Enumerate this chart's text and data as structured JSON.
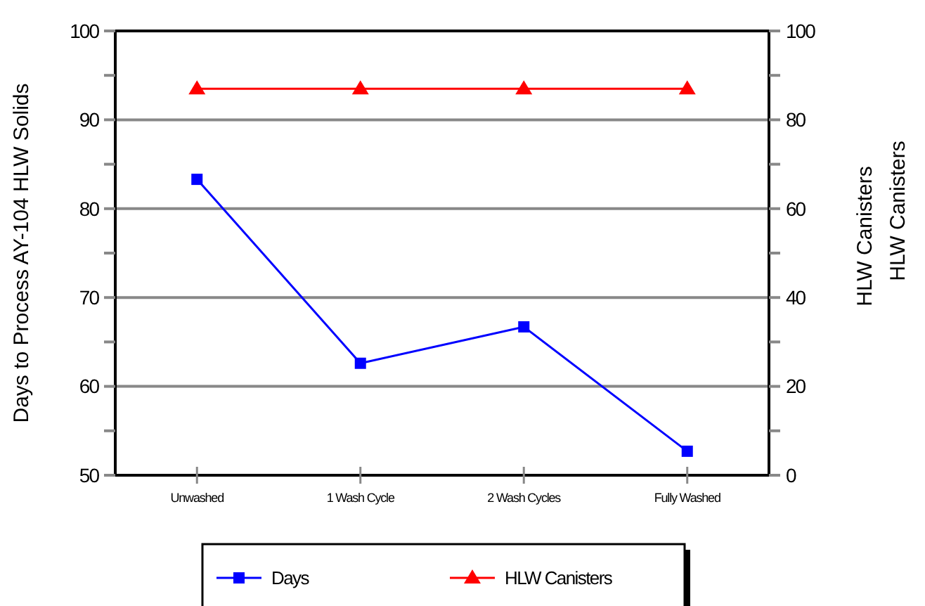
{
  "chart_data": {
    "type": "line",
    "ylabel": "Days to Process AY-104 HLW Solids",
    "y2label": "HLW Canisters",
    "annotations": [
      "HLW Canisters"
    ],
    "categories": [
      "Unwashed",
      "1 Wash Cycle",
      "2 Wash Cycles",
      "Fully Washed"
    ],
    "series": [
      {
        "name": "Days",
        "color": "#0000ff",
        "marker": "square",
        "values": [
          83.3,
          62.6,
          66.7,
          52.7
        ]
      },
      {
        "name": "HLW Canisters",
        "color": "#ff0000",
        "marker": "triangle",
        "axis": "y2",
        "values": [
          87,
          87,
          87,
          87
        ]
      }
    ],
    "ylim": [
      50,
      100
    ],
    "yticks": [
      50,
      {
        "value": 55,
        "label": null
      },
      60,
      {
        "value": 65,
        "label": null
      },
      70,
      {
        "value": 75,
        "label": null
      },
      80,
      {
        "value": 85,
        "label": null
      },
      90,
      {
        "value": 95,
        "label": null
      },
      100
    ],
    "y2lim": [
      0,
      100
    ],
    "y2ticks": [
      0,
      {
        "value": 10,
        "label": null
      },
      20,
      {
        "value": 30,
        "label": null
      },
      40,
      {
        "value": 50,
        "label": null
      },
      60,
      {
        "value": 70,
        "label": null
      },
      80,
      {
        "value": 90,
        "label": null
      },
      100
    ],
    "grid": "y",
    "legend": "bottom",
    "line_style": "solid"
  }
}
